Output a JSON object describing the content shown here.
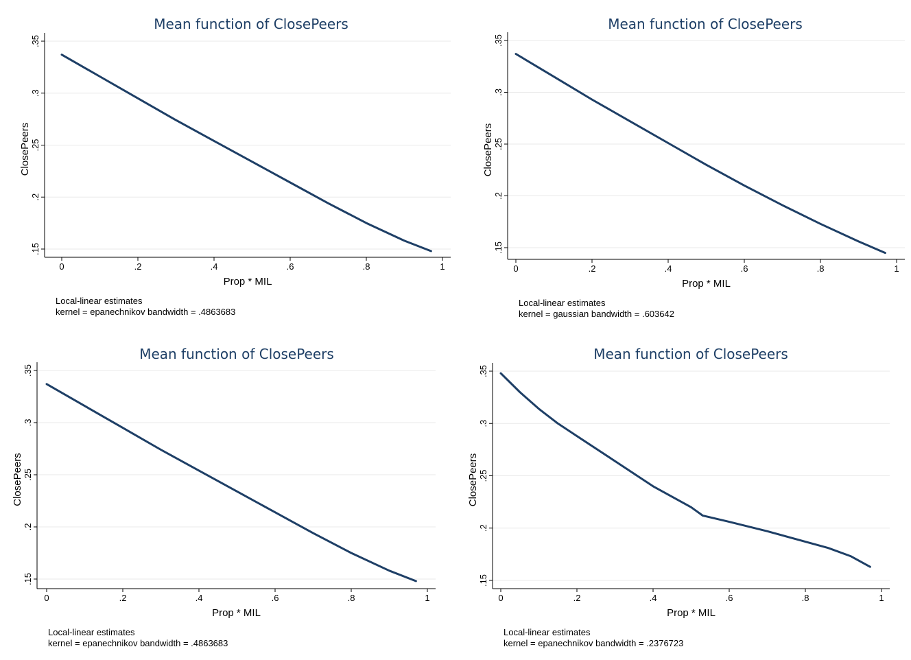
{
  "chart_data": [
    {
      "type": "line",
      "title": "Mean function of ClosePeers",
      "xlabel": "Prop * MIL",
      "ylabel": "ClosePeers",
      "xticks": [
        "0",
        ".2",
        ".4",
        ".6",
        ".8",
        "1"
      ],
      "yticks": [
        ".15",
        ".2",
        ".25",
        ".3",
        ".35"
      ],
      "xlim": [
        0,
        1
      ],
      "ylim": [
        0.15,
        0.35
      ],
      "grid": true,
      "series": [
        {
          "x": [
            0,
            0.1,
            0.2,
            0.3,
            0.4,
            0.5,
            0.6,
            0.7,
            0.8,
            0.9,
            0.97
          ],
          "y": [
            0.337,
            0.316,
            0.295,
            0.274,
            0.254,
            0.234,
            0.214,
            0.194,
            0.175,
            0.158,
            0.148
          ]
        }
      ],
      "note_line1": "Local-linear estimates",
      "note_line2": "kernel = epanechnikov bandwidth = .4863683"
    },
    {
      "type": "line",
      "title": "Mean function of ClosePeers",
      "xlabel": "Prop * MIL",
      "ylabel": "ClosePeers",
      "xticks": [
        "0",
        ".2",
        ".4",
        ".6",
        ".8",
        "1"
      ],
      "yticks": [
        ".15",
        ".2",
        ".25",
        ".3",
        ".35"
      ],
      "xlim": [
        0,
        1
      ],
      "ylim": [
        0.15,
        0.35
      ],
      "grid": true,
      "series": [
        {
          "x": [
            0,
            0.1,
            0.2,
            0.3,
            0.4,
            0.5,
            0.6,
            0.7,
            0.8,
            0.9,
            0.97
          ],
          "y": [
            0.337,
            0.315,
            0.293,
            0.272,
            0.251,
            0.23,
            0.21,
            0.191,
            0.173,
            0.156,
            0.145
          ]
        }
      ],
      "note_line1": "Local-linear estimates",
      "note_line2": "kernel = gaussian bandwidth = .603642"
    },
    {
      "type": "line",
      "title": "Mean function of ClosePeers",
      "xlabel": "Prop * MIL",
      "ylabel": "ClosePeers",
      "xticks": [
        "0",
        ".2",
        ".4",
        ".6",
        ".8",
        "1"
      ],
      "yticks": [
        ".15",
        ".2",
        ".25",
        ".3",
        ".35"
      ],
      "xlim": [
        0,
        1
      ],
      "ylim": [
        0.15,
        0.35
      ],
      "grid": true,
      "series": [
        {
          "x": [
            0,
            0.1,
            0.2,
            0.3,
            0.4,
            0.5,
            0.6,
            0.7,
            0.8,
            0.9,
            0.97
          ],
          "y": [
            0.337,
            0.316,
            0.295,
            0.274,
            0.254,
            0.234,
            0.214,
            0.194,
            0.175,
            0.158,
            0.148
          ]
        }
      ],
      "note_line1": "Local-linear estimates",
      "note_line2": "kernel = epanechnikov bandwidth = .4863683"
    },
    {
      "type": "line",
      "title": "Mean function of ClosePeers",
      "xlabel": "Prop * MIL",
      "ylabel": "ClosePeers",
      "xticks": [
        "0",
        ".2",
        ".4",
        ".6",
        ".8",
        "1"
      ],
      "yticks": [
        ".15",
        ".2",
        ".25",
        ".3",
        ".35"
      ],
      "xlim": [
        0,
        1
      ],
      "ylim": [
        0.15,
        0.35
      ],
      "grid": true,
      "series": [
        {
          "x": [
            0,
            0.05,
            0.1,
            0.15,
            0.2,
            0.3,
            0.4,
            0.5,
            0.53,
            0.6,
            0.7,
            0.8,
            0.86,
            0.92,
            0.97
          ],
          "y": [
            0.348,
            0.33,
            0.314,
            0.3,
            0.288,
            0.264,
            0.24,
            0.22,
            0.212,
            0.206,
            0.197,
            0.187,
            0.181,
            0.173,
            0.163
          ]
        }
      ],
      "note_line1": "Local-linear estimates",
      "note_line2": "kernel = epanechnikov bandwidth = .2376723"
    }
  ],
  "colors": {
    "line": "#1e3f66",
    "title": "#1e3f66",
    "grid": "#e8e8e8",
    "axis": "#000000"
  }
}
